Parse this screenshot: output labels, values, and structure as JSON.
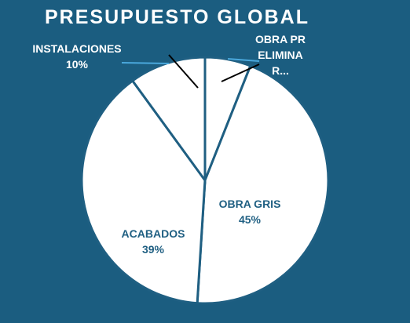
{
  "chart_data": {
    "type": "pie",
    "title": "PRESUPUESTO GLOBAL",
    "categories": [
      "OBRA PRELIMINAR...",
      "OBRA GRIS",
      "ACABADOS",
      "INSTALACIONES"
    ],
    "values": [
      6,
      45,
      39,
      10
    ],
    "value_labels": [
      null,
      "45%",
      "39%",
      "10%"
    ],
    "color": "#ffffff"
  }
}
